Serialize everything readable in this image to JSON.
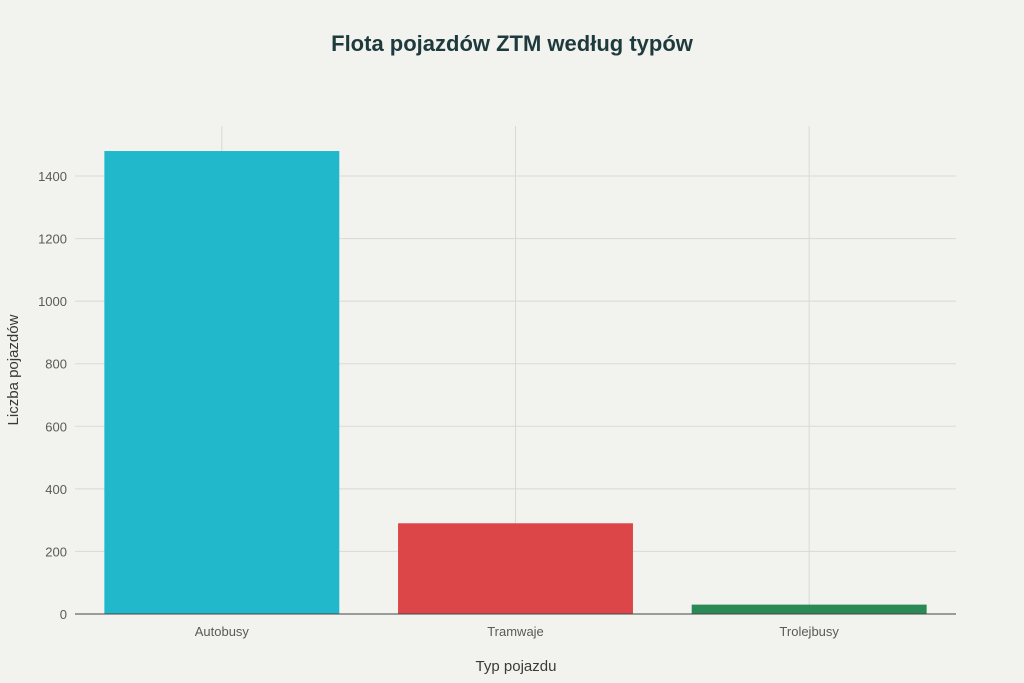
{
  "chart_data": {
    "type": "bar",
    "title": "Flota pojazdów ZTM według typów",
    "xlabel": "Typ pojazdu",
    "ylabel": "Liczba pojazdów",
    "categories": [
      "Autobusy",
      "Tramwaje",
      "Trolejbusy"
    ],
    "values": [
      1480,
      290,
      30
    ],
    "colors": [
      "#21b8cc",
      "#dc4648",
      "#2a8a55"
    ],
    "ylim": [
      0,
      1560
    ],
    "yticks": [
      0,
      200,
      400,
      600,
      800,
      1000,
      1200,
      1400
    ],
    "grid": true
  }
}
